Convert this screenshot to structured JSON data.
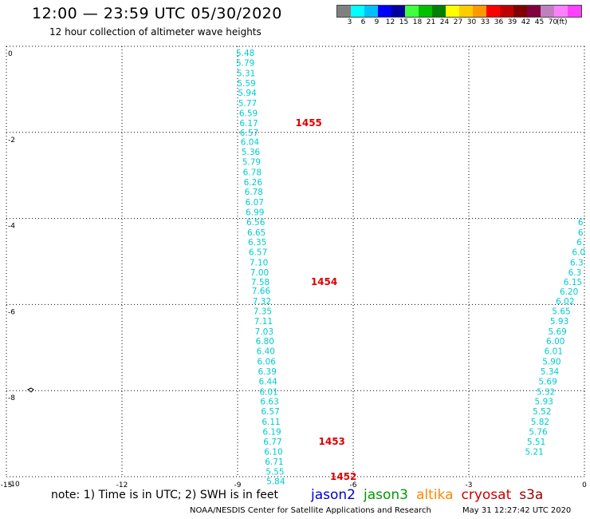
{
  "header": {
    "title": "12:00 — 23:59 UTC 05/30/2020",
    "subtitle": "12 hour collection of altimeter wave heights"
  },
  "legend": {
    "unit": "(ft)",
    "colors": [
      "#808080",
      "#00ffff",
      "#00c0ff",
      "#0000ff",
      "#0000a0",
      "#40ff40",
      "#00c000",
      "#008000",
      "#ffff00",
      "#ffcc00",
      "#ff9900",
      "#ff0000",
      "#c00000",
      "#800000",
      "#800040",
      "#c080c0",
      "#ff80ff",
      "#ff40ff"
    ],
    "ticks": [
      "3",
      "6",
      "9",
      "12",
      "15",
      "18",
      "21",
      "24",
      "27",
      "30",
      "33",
      "36",
      "39",
      "42",
      "45",
      "70"
    ]
  },
  "map": {
    "x_ticks": [
      "-15",
      "-12",
      "-9",
      "-6",
      "-3",
      "0"
    ],
    "y_ticks": [
      "0",
      "-2",
      "-4",
      "-6",
      "-8",
      "-10"
    ],
    "xlim": [
      -15,
      0
    ],
    "ylim": [
      -10,
      0
    ],
    "grid": true,
    "track_color": "#00cccc",
    "time_label_color": "#dd0000",
    "left_track": [
      {
        "lon": -8.8,
        "lat": -0.15,
        "v": "5.48"
      },
      {
        "lon": -8.8,
        "lat": -0.38,
        "v": "5.79"
      },
      {
        "lon": -8.78,
        "lat": -0.62,
        "v": "5.31"
      },
      {
        "lon": -8.77,
        "lat": -0.85,
        "v": "5.59"
      },
      {
        "lon": -8.75,
        "lat": -1.08,
        "v": "5.94"
      },
      {
        "lon": -8.74,
        "lat": -1.32,
        "v": "5.77"
      },
      {
        "lon": -8.72,
        "lat": -1.55,
        "v": "6.59"
      },
      {
        "lon": -8.71,
        "lat": -1.78,
        "v": "6.17"
      },
      {
        "lon": -8.7,
        "lat": -2.0,
        "v": "6.57"
      },
      {
        "lon": -8.68,
        "lat": -2.22,
        "v": "6.04"
      },
      {
        "lon": -8.66,
        "lat": -2.45,
        "v": "5.36"
      },
      {
        "lon": -8.64,
        "lat": -2.68,
        "v": "5.79"
      },
      {
        "lon": -8.62,
        "lat": -2.92,
        "v": "6.78"
      },
      {
        "lon": -8.6,
        "lat": -3.15,
        "v": "6.26"
      },
      {
        "lon": -8.58,
        "lat": -3.38,
        "v": "6.78"
      },
      {
        "lon": -8.56,
        "lat": -3.62,
        "v": "6.07"
      },
      {
        "lon": -8.55,
        "lat": -3.85,
        "v": "6.99"
      },
      {
        "lon": -8.53,
        "lat": -4.08,
        "v": "6.56"
      },
      {
        "lon": -8.51,
        "lat": -4.32,
        "v": "6.65"
      },
      {
        "lon": -8.49,
        "lat": -4.55,
        "v": "6.35"
      },
      {
        "lon": -8.47,
        "lat": -4.78,
        "v": "6.57"
      },
      {
        "lon": -8.45,
        "lat": -5.02,
        "v": "7.10"
      },
      {
        "lon": -8.43,
        "lat": -5.25,
        "v": "7.00"
      },
      {
        "lon": -8.41,
        "lat": -5.47,
        "v": "7.58"
      },
      {
        "lon": -8.39,
        "lat": -5.68,
        "v": "7.66"
      },
      {
        "lon": -8.37,
        "lat": -5.92,
        "v": "7.32"
      },
      {
        "lon": -8.35,
        "lat": -6.15,
        "v": "7.35"
      },
      {
        "lon": -8.33,
        "lat": -6.38,
        "v": "7.11"
      },
      {
        "lon": -8.31,
        "lat": -6.62,
        "v": "7.03"
      },
      {
        "lon": -8.29,
        "lat": -6.85,
        "v": "6.80"
      },
      {
        "lon": -8.27,
        "lat": -7.08,
        "v": "6.40"
      },
      {
        "lon": -8.25,
        "lat": -7.32,
        "v": "6.06"
      },
      {
        "lon": -8.23,
        "lat": -7.55,
        "v": "6.39"
      },
      {
        "lon": -8.21,
        "lat": -7.78,
        "v": "6.44"
      },
      {
        "lon": -8.19,
        "lat": -8.02,
        "v": "6.01"
      },
      {
        "lon": -8.17,
        "lat": -8.25,
        "v": "6.63"
      },
      {
        "lon": -8.15,
        "lat": -8.48,
        "v": "6.57"
      },
      {
        "lon": -8.13,
        "lat": -8.72,
        "v": "6.11"
      },
      {
        "lon": -8.11,
        "lat": -8.95,
        "v": "6.19"
      },
      {
        "lon": -8.09,
        "lat": -9.18,
        "v": "6.77"
      },
      {
        "lon": -8.07,
        "lat": -9.42,
        "v": "6.10"
      },
      {
        "lon": -8.05,
        "lat": -9.65,
        "v": "6.71"
      },
      {
        "lon": -8.03,
        "lat": -9.88,
        "v": "5.55"
      },
      {
        "lon": -8.01,
        "lat": -10.1,
        "v": "5.84"
      }
    ],
    "right_track": [
      {
        "lon": -0.1,
        "lat": -4.08,
        "v": "6"
      },
      {
        "lon": -0.1,
        "lat": -4.32,
        "v": "6"
      },
      {
        "lon": -0.1,
        "lat": -4.55,
        "v": "6."
      },
      {
        "lon": -0.15,
        "lat": -4.78,
        "v": "6.0"
      },
      {
        "lon": -0.2,
        "lat": -5.02,
        "v": "6.3"
      },
      {
        "lon": -0.25,
        "lat": -5.25,
        "v": "6.3"
      },
      {
        "lon": -0.3,
        "lat": -5.47,
        "v": "6.15"
      },
      {
        "lon": -0.4,
        "lat": -5.7,
        "v": "6.20"
      },
      {
        "lon": -0.5,
        "lat": -5.92,
        "v": "6.02"
      },
      {
        "lon": -0.6,
        "lat": -6.15,
        "v": "5.65"
      },
      {
        "lon": -0.65,
        "lat": -6.38,
        "v": "5.93"
      },
      {
        "lon": -0.7,
        "lat": -6.62,
        "v": "5.69"
      },
      {
        "lon": -0.75,
        "lat": -6.85,
        "v": "6.00"
      },
      {
        "lon": -0.8,
        "lat": -7.08,
        "v": "6.01"
      },
      {
        "lon": -0.85,
        "lat": -7.32,
        "v": "5.90"
      },
      {
        "lon": -0.9,
        "lat": -7.55,
        "v": "5.34"
      },
      {
        "lon": -0.95,
        "lat": -7.78,
        "v": "5.69"
      },
      {
        "lon": -1.0,
        "lat": -8.02,
        "v": "5.32"
      },
      {
        "lon": -1.05,
        "lat": -8.25,
        "v": "5.93"
      },
      {
        "lon": -1.1,
        "lat": -8.48,
        "v": "5.52"
      },
      {
        "lon": -1.15,
        "lat": -8.72,
        "v": "5.82"
      },
      {
        "lon": -1.2,
        "lat": -8.95,
        "v": "5.76"
      },
      {
        "lon": -1.25,
        "lat": -9.18,
        "v": "5.51"
      },
      {
        "lon": -1.3,
        "lat": -9.42,
        "v": "5.21"
      }
    ],
    "time_labels": [
      {
        "lon": -7.5,
        "lat": -1.78,
        "t": "1455"
      },
      {
        "lon": -7.1,
        "lat": -5.47,
        "t": "1454"
      },
      {
        "lon": -6.9,
        "lat": -9.18,
        "t": "1453"
      },
      {
        "lon": -6.6,
        "lat": -10.0,
        "t": "1452"
      }
    ]
  },
  "footer": {
    "note": "note: 1) Time is in UTC; 2) SWH is in feet",
    "satellites": [
      {
        "name": "jason2",
        "color": "#0000cc"
      },
      {
        "name": "jason3",
        "color": "#009900"
      },
      {
        "name": "altika",
        "color": "#ff8800"
      },
      {
        "name": "cryosat",
        "color": "#cc0000"
      },
      {
        "name": "s3a",
        "color": "#990000"
      }
    ],
    "credit": "NOAA/NESDIS Center for Satellite Applications and Research",
    "timestamp": "May 31 12:27:42 UTC 2020"
  }
}
